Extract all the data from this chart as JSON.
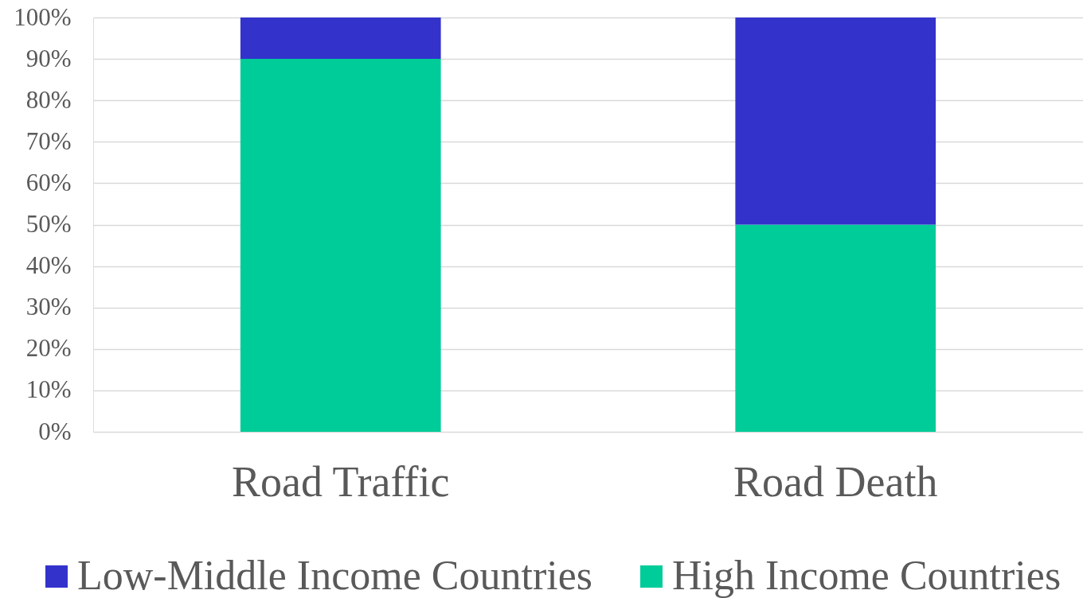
{
  "chart_data": {
    "type": "bar",
    "stacked": true,
    "categories": [
      "Road Traffic",
      "Road Death"
    ],
    "series": [
      {
        "name": "High Income Countries",
        "color": "#00cc99",
        "values": [
          90,
          50
        ]
      },
      {
        "name": "Low-Middle Income Countries",
        "color": "#3333cc",
        "values": [
          10,
          50
        ]
      }
    ],
    "ylim": [
      0,
      100
    ],
    "yticks": [
      {
        "value": 0,
        "label": "0%"
      },
      {
        "value": 10,
        "label": "10%"
      },
      {
        "value": 20,
        "label": "20%"
      },
      {
        "value": 30,
        "label": "30%"
      },
      {
        "value": 40,
        "label": "40%"
      },
      {
        "value": 50,
        "label": "50%"
      },
      {
        "value": 60,
        "label": "60%"
      },
      {
        "value": 70,
        "label": "70%"
      },
      {
        "value": 80,
        "label": "80%"
      },
      {
        "value": 90,
        "label": "90%"
      },
      {
        "value": 100,
        "label": "100%"
      }
    ],
    "grid": "y",
    "legend": "bottom"
  }
}
